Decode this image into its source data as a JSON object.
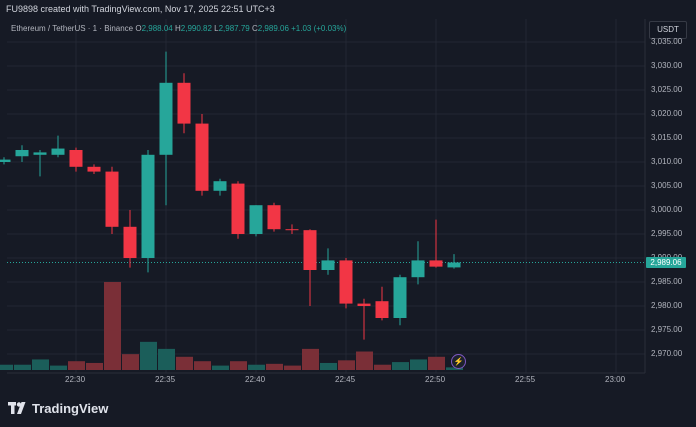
{
  "header": {
    "caption": "FU9898 created with TradingView.com, Nov 17, 2025 22:51 UTC+3"
  },
  "legend": {
    "symbol": "Ethereum / TetherUS · 1 · Binance",
    "o_label": "O",
    "o_value": "2,988.04",
    "h_label": "H",
    "h_value": "2,990.82",
    "l_label": "L",
    "l_value": "2,987.79",
    "c_label": "C",
    "c_value": "2,989.06",
    "change": "+1.03 (+0.03%)"
  },
  "currency_button": {
    "label": "USDT"
  },
  "last_price_tag": "2,989.06",
  "brand": {
    "name": "TradingView"
  },
  "colors": {
    "up": "#26a69a",
    "down": "#f23645",
    "up_volume": "#1b5e5a",
    "down_volume": "#7a2f37",
    "grid": "#232733"
  },
  "icons": {
    "watermark_logo": "tradingview-logo-icon",
    "alert": "lightning-bolt-icon"
  },
  "chart_data": {
    "type": "candlestick",
    "symbol": "ETHUSDT",
    "timeframe": "1",
    "y_ticks": [
      "3,035.00",
      "3,030.00",
      "3,025.00",
      "3,020.00",
      "3,015.00",
      "3,010.00",
      "3,005.00",
      "3,000.00",
      "2,995.00",
      "2,990.00",
      "2,985.00",
      "2,980.00",
      "2,975.00",
      "2,970.00"
    ],
    "ylim": [
      2967,
      3036
    ],
    "x_ticks": [
      "22:30",
      "22:35",
      "22:40",
      "22:45",
      "22:50",
      "22:55",
      "23:00"
    ],
    "candles": [
      {
        "t": "22:26",
        "o": 3010.0,
        "h": 3011.0,
        "l": 3009.5,
        "c": 3010.5
      },
      {
        "t": "22:27",
        "o": 3011.2,
        "h": 3013.5,
        "l": 3010.0,
        "c": 3012.5
      },
      {
        "t": "22:28",
        "o": 3011.5,
        "h": 3012.5,
        "l": 3007.0,
        "c": 3012.0
      },
      {
        "t": "22:29",
        "o": 3011.5,
        "h": 3015.5,
        "l": 3011.0,
        "c": 3012.8
      },
      {
        "t": "22:30",
        "o": 3012.5,
        "h": 3013.0,
        "l": 3008.0,
        "c": 3009.0
      },
      {
        "t": "22:31",
        "o": 3009.0,
        "h": 3009.5,
        "l": 3007.5,
        "c": 3008.0
      },
      {
        "t": "22:32",
        "o": 3008.0,
        "h": 3009.0,
        "l": 2995.0,
        "c": 2996.5
      },
      {
        "t": "22:33",
        "o": 2996.5,
        "h": 3000.0,
        "l": 2988.0,
        "c": 2990.0
      },
      {
        "t": "22:34",
        "o": 2990.0,
        "h": 3012.5,
        "l": 2987.0,
        "c": 3011.5
      },
      {
        "t": "22:35",
        "o": 3011.5,
        "h": 3033.0,
        "l": 3001.0,
        "c": 3026.5
      },
      {
        "t": "22:36",
        "o": 3026.5,
        "h": 3028.5,
        "l": 3016.0,
        "c": 3018.0
      },
      {
        "t": "22:37",
        "o": 3018.0,
        "h": 3020.0,
        "l": 3003.0,
        "c": 3004.0
      },
      {
        "t": "22:38",
        "o": 3004.0,
        "h": 3006.5,
        "l": 3003.0,
        "c": 3006.0
      },
      {
        "t": "22:39",
        "o": 3005.5,
        "h": 3006.0,
        "l": 2994.0,
        "c": 2995.0
      },
      {
        "t": "22:40",
        "o": 2995.0,
        "h": 3001.0,
        "l": 2994.5,
        "c": 3001.0
      },
      {
        "t": "22:41",
        "o": 3001.0,
        "h": 3001.5,
        "l": 2995.5,
        "c": 2996.0
      },
      {
        "t": "22:42",
        "o": 2996.0,
        "h": 2997.0,
        "l": 2995.0,
        "c": 2995.8
      },
      {
        "t": "22:43",
        "o": 2995.8,
        "h": 2996.0,
        "l": 2980.0,
        "c": 2987.5
      },
      {
        "t": "22:44",
        "o": 2987.5,
        "h": 2992.0,
        "l": 2986.5,
        "c": 2989.5
      },
      {
        "t": "22:45",
        "o": 2989.5,
        "h": 2990.0,
        "l": 2979.5,
        "c": 2980.5
      },
      {
        "t": "22:46",
        "o": 2980.5,
        "h": 2981.5,
        "l": 2973.0,
        "c": 2980.0
      },
      {
        "t": "22:47",
        "o": 2981.0,
        "h": 2984.0,
        "l": 2977.0,
        "c": 2977.5
      },
      {
        "t": "22:48",
        "o": 2977.5,
        "h": 2986.5,
        "l": 2976.0,
        "c": 2986.0
      },
      {
        "t": "22:49",
        "o": 2986.0,
        "h": 2993.5,
        "l": 2984.5,
        "c": 2989.5
      },
      {
        "t": "22:50",
        "o": 2989.5,
        "h": 2998.0,
        "l": 2988.0,
        "c": 2988.2
      },
      {
        "t": "22:51",
        "o": 2988.04,
        "h": 2990.82,
        "l": 2987.79,
        "c": 2989.06
      }
    ],
    "volume": [
      6,
      6,
      12,
      5,
      10,
      8,
      100,
      18,
      32,
      24,
      15,
      10,
      5,
      10,
      6,
      7,
      5,
      24,
      8,
      11,
      21,
      6,
      9,
      12,
      15,
      3
    ]
  }
}
